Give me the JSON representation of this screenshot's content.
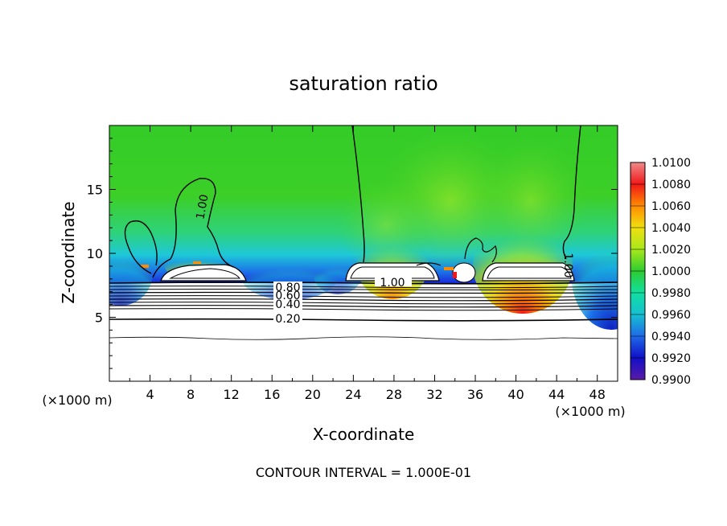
{
  "chart_data": {
    "type": "heatmap",
    "title": "saturation ratio",
    "xlabel": "X-coordinate",
    "ylabel": "Z-coordinate",
    "x_unit_left": "(×1000 m)",
    "x_unit_right": "(×1000 m)",
    "xlim": [
      0,
      50
    ],
    "ylim": [
      0,
      20
    ],
    "x_ticks": [
      4,
      8,
      12,
      16,
      20,
      24,
      28,
      32,
      36,
      40,
      44,
      48
    ],
    "y_ticks": [
      5,
      10,
      15
    ],
    "footer": "CONTOUR INTERVAL = 1.000E-01",
    "colorbar": {
      "levels": [
        0.99,
        0.992,
        0.994,
        0.996,
        0.998,
        1.0,
        1.002,
        1.004,
        1.006,
        1.008,
        1.01
      ],
      "labels": [
        "0.9900",
        "0.9920",
        "0.9940",
        "0.9960",
        "0.9980",
        "1.0000",
        "1.0020",
        "1.0040",
        "1.0060",
        "1.0080",
        "1.0100"
      ],
      "colors": [
        "#5b1aa8",
        "#1010c8",
        "#1f6ae8",
        "#16c0d0",
        "#10e0a0",
        "#2ecc30",
        "#a8e81a",
        "#f0e010",
        "#ff8c00",
        "#f01818",
        "#f08a8a"
      ]
    },
    "contour_labels": [
      {
        "text": "1.00",
        "x": 10.0,
        "z": 13.8,
        "rotate": -80
      },
      {
        "text": "1.00",
        "x": 28.0,
        "z": 7.9,
        "rotate": 0
      },
      {
        "text": "1.00",
        "x": 45.2,
        "z": 9.2,
        "rotate": 90
      },
      {
        "text": "0.80",
        "x": 17.8,
        "z": 7.4,
        "rotate": 0
      },
      {
        "text": "0.60",
        "x": 17.8,
        "z": 6.8,
        "rotate": 0
      },
      {
        "text": "0.40",
        "x": 17.8,
        "z": 6.0,
        "rotate": 0
      },
      {
        "text": "0.20",
        "x": 17.8,
        "z": 4.8,
        "rotate": 0
      }
    ]
  }
}
